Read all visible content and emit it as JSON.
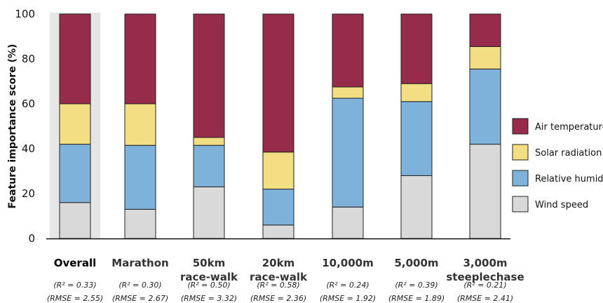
{
  "chart_data": {
    "type": "bar",
    "stacked": true,
    "ylabel": "Feature importance score (%)",
    "ylim": [
      0,
      100
    ],
    "yticks": [
      0,
      20,
      40,
      60,
      80,
      100
    ],
    "grid": false,
    "legend_position": "right",
    "highlight_category": 0,
    "categories": [
      {
        "lines": [
          "Overall"
        ],
        "stats": [
          "(R² = 0.33)",
          "(RMSE = 2.55)"
        ]
      },
      {
        "lines": [
          "Marathon"
        ],
        "stats": [
          "(R² = 0.30)",
          "(RMSE = 2.67)"
        ]
      },
      {
        "lines": [
          "50km",
          "race-walk"
        ],
        "stats": [
          "(R² = 0.50)",
          "(RMSE = 3.32)"
        ]
      },
      {
        "lines": [
          "20km",
          "race-walk"
        ],
        "stats": [
          "(R² = 0.58)",
          "(RMSE = 2.36)"
        ]
      },
      {
        "lines": [
          "10,000m"
        ],
        "stats": [
          "(R² = 0.24)",
          "(RMSE = 1.92)"
        ]
      },
      {
        "lines": [
          "5,000m"
        ],
        "stats": [
          "(R² = 0.39)",
          "(RMSE = 1.89)"
        ]
      },
      {
        "lines": [
          "3,000m",
          "steeplechase"
        ],
        "stats": [
          "(R² = 0.21)",
          "(RMSE = 2.41)"
        ]
      }
    ],
    "series": [
      {
        "name": "Wind speed",
        "color": "#d9d9d9",
        "values": [
          16,
          13,
          23,
          6,
          14,
          28,
          42
        ]
      },
      {
        "name": "Relative humidity",
        "color": "#7fb2db",
        "values": [
          26,
          28.5,
          18.5,
          16,
          48.5,
          33,
          33.5
        ]
      },
      {
        "name": "Solar radiation",
        "color": "#f3df83",
        "values": [
          18,
          18.5,
          3.5,
          16.5,
          5,
          8,
          10
        ]
      },
      {
        "name": "Air temperature",
        "color": "#962b4b",
        "values": [
          40,
          40,
          55,
          61.5,
          32.5,
          31,
          14.5
        ]
      }
    ],
    "legend_order": [
      "Air temperature",
      "Solar radiation",
      "Relative humidity",
      "Wind speed"
    ]
  }
}
